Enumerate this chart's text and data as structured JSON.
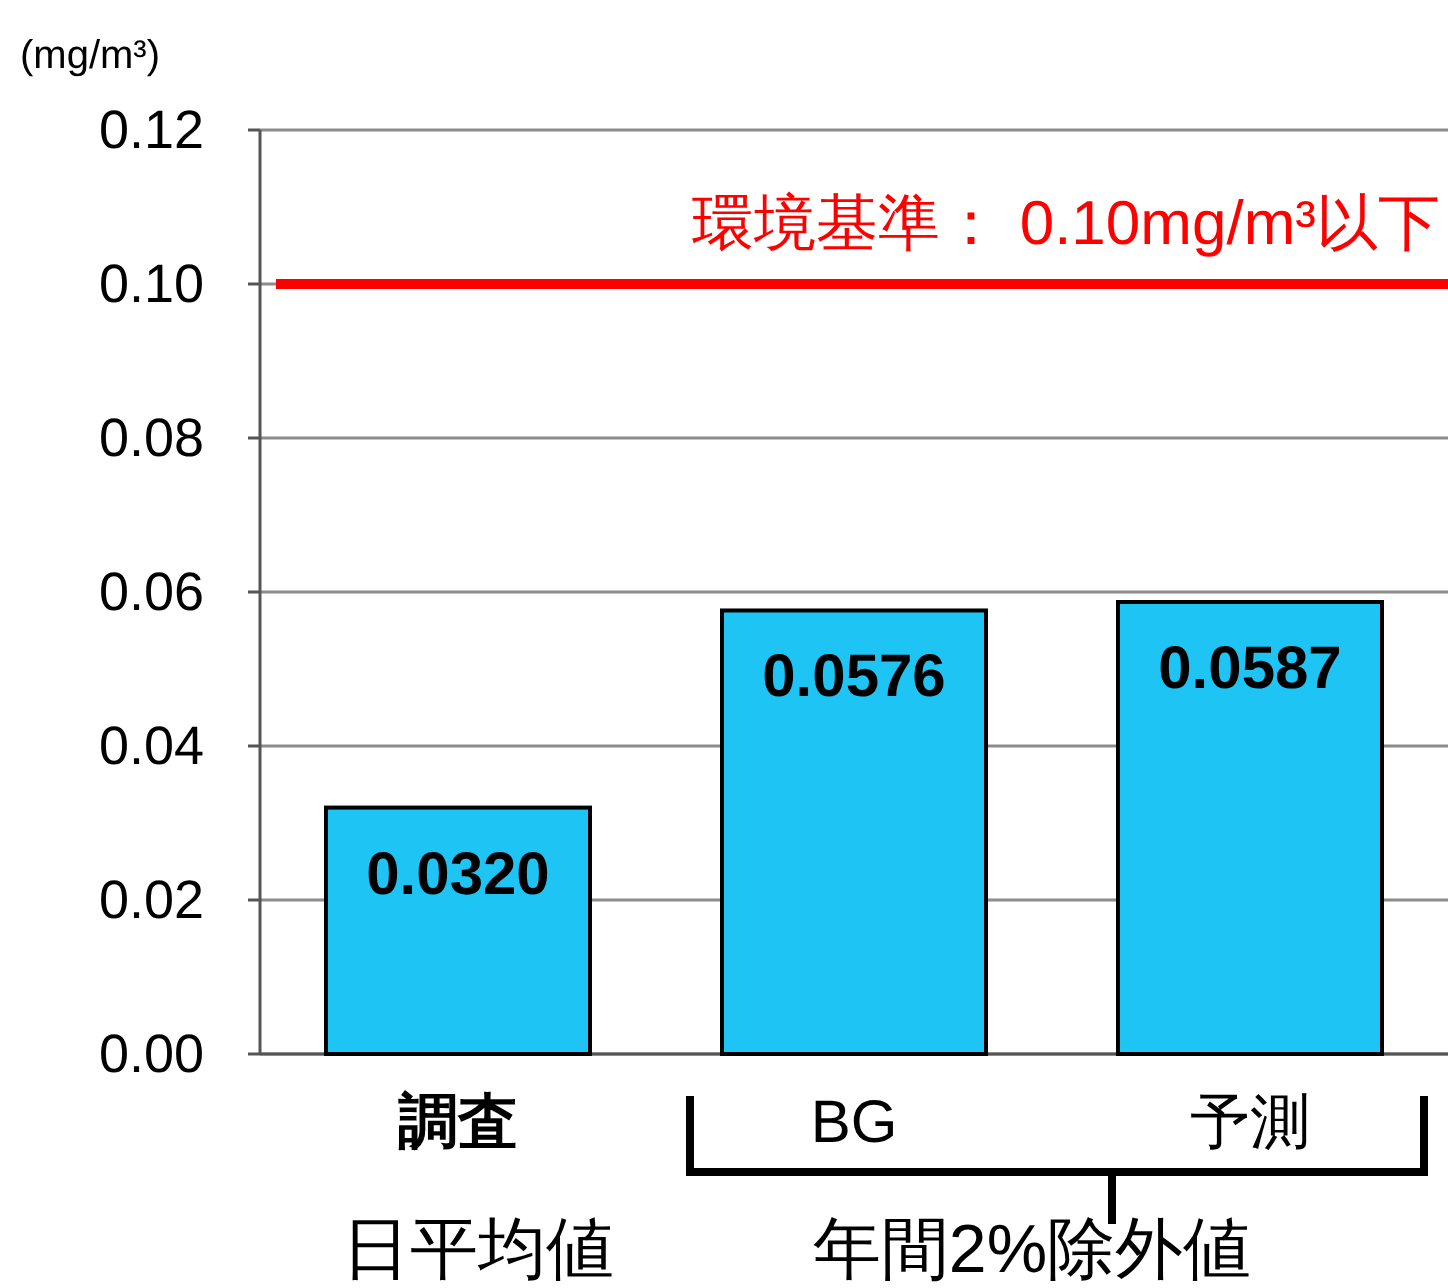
{
  "chart_data": {
    "type": "bar",
    "ylabel": "(mg/m³)",
    "categories": [
      "調査",
      "BG",
      "予測"
    ],
    "values": [
      0.032,
      0.0576,
      0.0587
    ],
    "value_labels": [
      "0.0320",
      "0.0576",
      "0.0587"
    ],
    "color": "#1ec4f4",
    "ylim": [
      0,
      0.12
    ],
    "yticks": [
      {
        "value": 0,
        "label": "0.00"
      },
      {
        "value": 0.02,
        "label": "0.02"
      },
      {
        "value": 0.04,
        "label": "0.04"
      },
      {
        "value": 0.06,
        "label": "0.06"
      },
      {
        "value": 0.08,
        "label": "0.08"
      },
      {
        "value": 0.1,
        "label": "0.10"
      },
      {
        "value": 0.12,
        "label": "0.12"
      }
    ],
    "grid": "y",
    "ref_lines": [
      {
        "axis": "y",
        "value": 0.1,
        "label": "環境基準： 0.10mg/m³以下",
        "color": "#ff0000"
      }
    ],
    "annotations": [
      "日平均値",
      "年間2%除外値"
    ]
  }
}
